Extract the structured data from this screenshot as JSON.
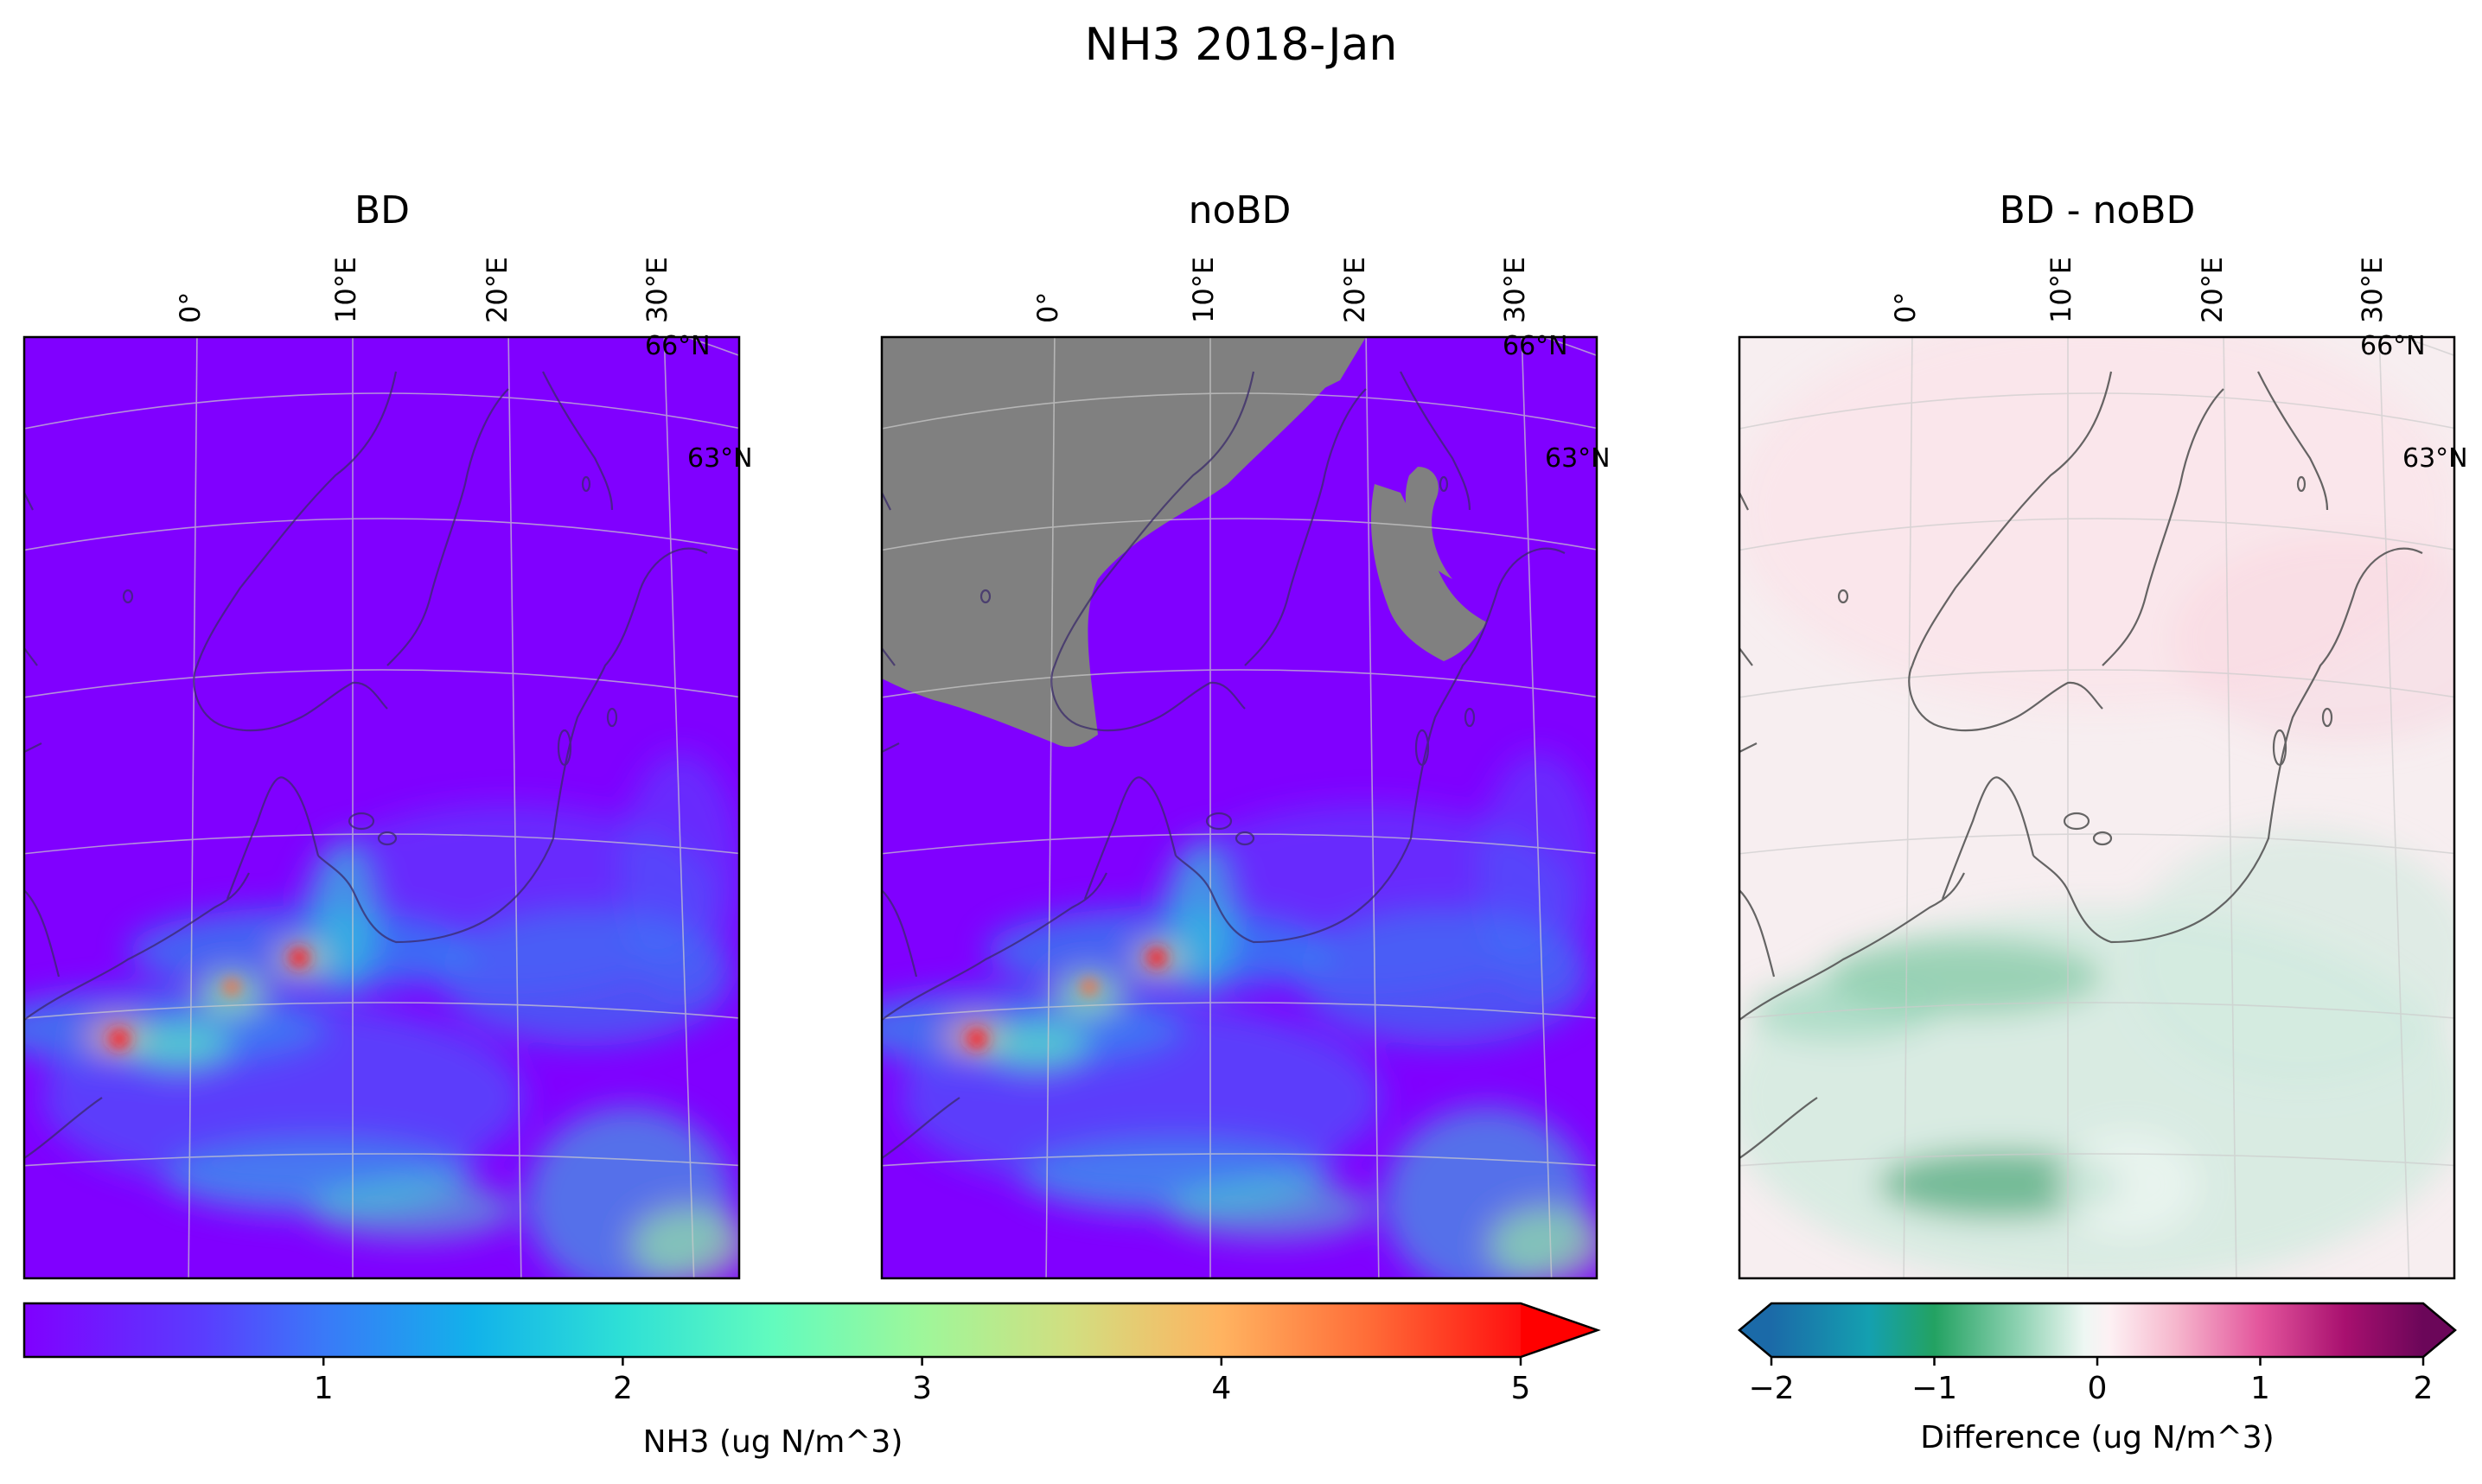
{
  "title": "NH3 2018-Jan",
  "panels": [
    {
      "id": "bd",
      "title": "BD",
      "type": "concentration"
    },
    {
      "id": "nobd",
      "title": "noBD",
      "type": "concentration_masked"
    },
    {
      "id": "diff",
      "title": "BD - noBD",
      "type": "difference"
    }
  ],
  "map": {
    "lon_labels": [
      "0°",
      "10°E",
      "20°E",
      "30°E"
    ],
    "lat_labels": [
      "66°N",
      "63°N"
    ],
    "coastline_color": "#555555",
    "graticule_color": "#cccccc",
    "masked_color": "#808080"
  },
  "colorbars": {
    "concentration": {
      "label": "NH3 (ug N/m^3)",
      "colormap": "rainbow",
      "range": [
        0,
        5
      ],
      "ticks": [
        "1",
        "2",
        "3",
        "4",
        "5"
      ],
      "extend": "max"
    },
    "difference": {
      "label": "Difference (ug N/m^3)",
      "colormap": "diverging blue-green-white-pink-purple",
      "range": [
        -2,
        2
      ],
      "ticks": [
        "−2",
        "−1",
        "0",
        "1",
        "2"
      ],
      "extend": "both"
    }
  },
  "chart_data": {
    "type": "heatmap",
    "title": "NH3 2018-Jan",
    "panels": [
      "BD",
      "noBD",
      "BD - noBD"
    ],
    "colorbar_labels": [
      "NH3 (ug N/m^3)",
      "Difference (ug N/m^3)"
    ],
    "value_range_concentration": [
      0,
      5
    ],
    "value_range_difference": [
      -2,
      2
    ]
  }
}
